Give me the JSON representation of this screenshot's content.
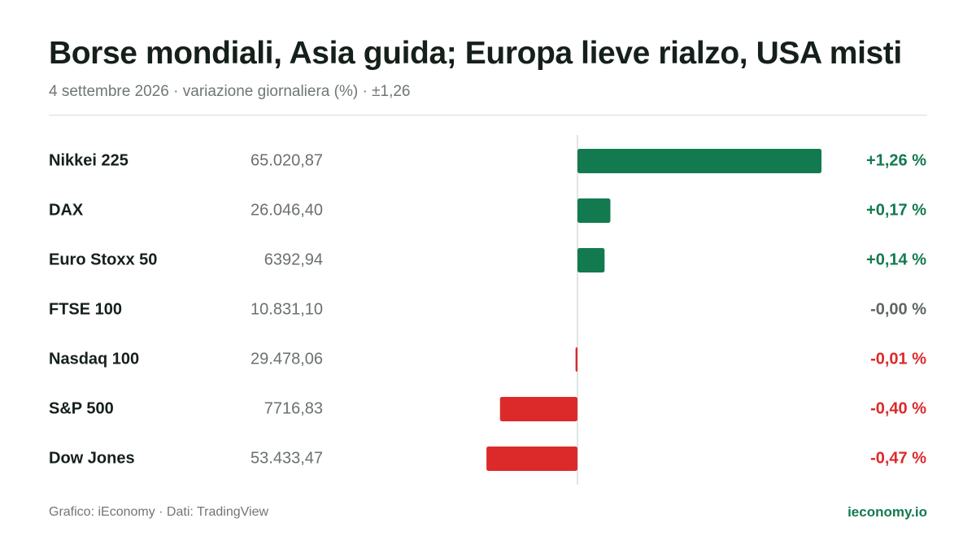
{
  "header": {
    "title": "Borse mondiali, Asia guida; Europa lieve rialzo, USA misti",
    "subtitle": "4 settembre 2026 · variazione giornaliera (%) · ±1,26"
  },
  "footer": {
    "source": "Grafico: iEconomy · Dati: TradingView",
    "brand": "ieconomy.io"
  },
  "colors": {
    "positive": "#137a50",
    "negative": "#dc2a2a",
    "neutral": "#5f6663",
    "axis": "#d9dcda"
  },
  "chart_data": {
    "type": "bar",
    "orientation": "horizontal",
    "title": "Borse mondiali, Asia guida; Europa lieve rialzo, USA misti",
    "subtitle": "4 settembre 2026 · variazione giornaliera (%) · ±1,26",
    "categories": [
      "Nikkei 225",
      "DAX",
      "Euro Stoxx 50",
      "FTSE 100",
      "Nasdaq 100",
      "S&P 500",
      "Dow Jones"
    ],
    "levels": [
      "65.020,87",
      "26.046,40",
      "6392,94",
      "10.831,10",
      "29.478,06",
      "7716,83",
      "53.433,47"
    ],
    "values": [
      1.26,
      0.17,
      0.14,
      -0.0,
      -0.01,
      -0.4,
      -0.47
    ],
    "value_labels": [
      "+1,26 %",
      "+0,17 %",
      "+0,14 %",
      "-0,00 %",
      "-0,01 %",
      "-0,40 %",
      "-0,47 %"
    ],
    "xlim": [
      -1.26,
      1.26
    ],
    "grid": false,
    "legend": "none"
  }
}
